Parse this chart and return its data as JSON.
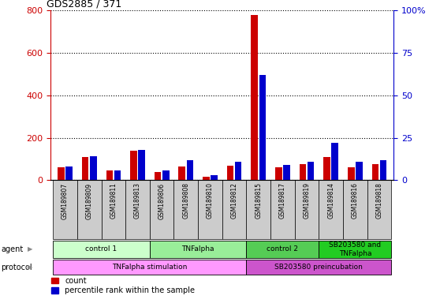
{
  "title": "GDS2885 / 371",
  "samples": [
    "GSM189807",
    "GSM189809",
    "GSM189811",
    "GSM189813",
    "GSM189806",
    "GSM189808",
    "GSM189810",
    "GSM189812",
    "GSM189815",
    "GSM189817",
    "GSM189819",
    "GSM189814",
    "GSM189816",
    "GSM189818"
  ],
  "red_values": [
    60,
    110,
    45,
    140,
    40,
    65,
    15,
    70,
    780,
    60,
    75,
    110,
    60,
    75
  ],
  "blue_pct": [
    8,
    14,
    6,
    18,
    6,
    12,
    3,
    11,
    62,
    9,
    11,
    22,
    11,
    12
  ],
  "left_ylim": [
    0,
    800
  ],
  "right_ylim": [
    0,
    100
  ],
  "left_yticks": [
    0,
    200,
    400,
    600,
    800
  ],
  "right_yticks": [
    0,
    25,
    50,
    75,
    100
  ],
  "right_yticklabels": [
    "0",
    "25",
    "50",
    "75",
    "100%"
  ],
  "red_color": "#cc0000",
  "blue_color": "#0000cc",
  "bar_width": 0.28,
  "bar_sep": 0.05,
  "agent_groups": [
    {
      "label": "control 1",
      "start": 0,
      "end": 4,
      "color": "#ccffcc"
    },
    {
      "label": "TNFalpha",
      "start": 4,
      "end": 8,
      "color": "#99ee99"
    },
    {
      "label": "control 2",
      "start": 8,
      "end": 11,
      "color": "#55cc55"
    },
    {
      "label": "SB203580 and\nTNFalpha",
      "start": 11,
      "end": 14,
      "color": "#22cc22"
    }
  ],
  "protocol_groups": [
    {
      "label": "TNFalpha stimulation",
      "start": 0,
      "end": 8,
      "color": "#ff99ff"
    },
    {
      "label": "SB203580 preincubation",
      "start": 8,
      "end": 14,
      "color": "#cc55cc"
    }
  ],
  "sample_col_color": "#cccccc",
  "legend_red": "count",
  "legend_blue": "percentile rank within the sample",
  "fig_w": 5.58,
  "fig_h": 3.84,
  "dpi": 100
}
